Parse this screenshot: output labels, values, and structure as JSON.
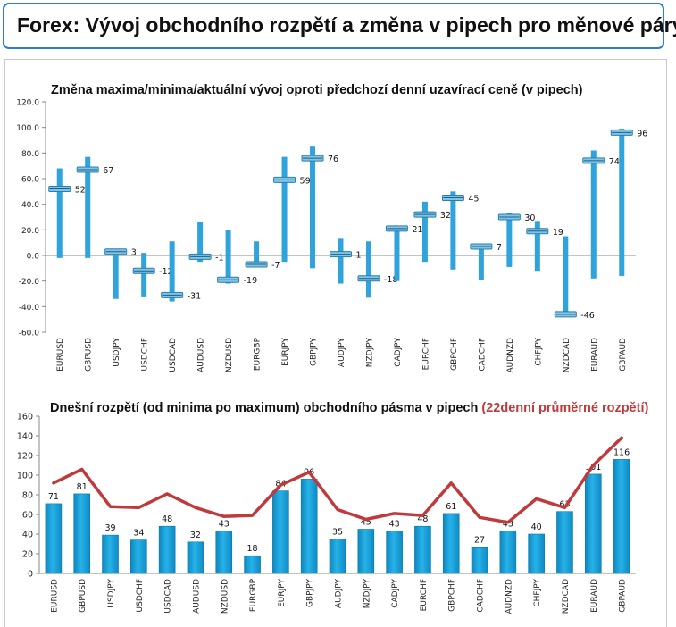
{
  "header": {
    "title": "Forex: Vývoj obchodního rozpětí a změna v pipech pro měnové páry"
  },
  "chart_data": [
    {
      "type": "range-bar",
      "title": "Změna maxima/minima/aktuální vývoj oproti předchozí denní uzavírací ceně (v pipech)",
      "categories": [
        "EURUSD",
        "GBPUSD",
        "USDJPY",
        "USDCHF",
        "USDCAD",
        "AUDUSD",
        "NZDUSD",
        "EURGBP",
        "EURJPY",
        "GBPJPY",
        "AUDJPY",
        "NZDJPY",
        "CADJPY",
        "EURCHF",
        "GBPCHF",
        "CADCHF",
        "AUDNZD",
        "CHFJPY",
        "NZDCAD",
        "EURAUD",
        "GBPAUD"
      ],
      "high": [
        68,
        77,
        3,
        2,
        11,
        26,
        20,
        11,
        77,
        85,
        13,
        11,
        22,
        42,
        50,
        9,
        33,
        27,
        15,
        82,
        99
      ],
      "low": [
        -2,
        -2,
        -34,
        -32,
        -36,
        -5,
        -22,
        -7,
        -5,
        -10,
        -22,
        -33,
        -20,
        -5,
        -11,
        -19,
        -9,
        -12,
        -46,
        -18,
        -16
      ],
      "current": [
        52,
        67,
        3,
        -12,
        -31,
        -1,
        -19,
        -7,
        59,
        76,
        1,
        -18,
        21,
        32,
        45,
        7,
        30,
        19,
        -46,
        74,
        96
      ],
      "current_labels": [
        "52",
        "67",
        "3",
        "-12",
        "-31",
        "-1",
        "-19",
        "-7",
        "59",
        "76",
        "1",
        "-18",
        "21",
        "32",
        "45",
        "7",
        "30",
        "19",
        "-46",
        "74",
        "96"
      ],
      "ylim": [
        -60,
        120
      ],
      "yticks": [
        "120.0",
        "100.0",
        "80.0",
        "60.0",
        "40.0",
        "20.0",
        "0.0",
        "-20.0",
        "-40.0",
        "-60.0"
      ],
      "grid": false,
      "colors": {
        "bar": "#2fa3dc",
        "marker": "#7fc4e6"
      }
    },
    {
      "type": "bar+line",
      "title": "Dnešní rozpětí (od minima po maximum) obchodního pásma v pipech",
      "title_highlight": "(22denní průměrné rozpětí)",
      "categories": [
        "EURUSD",
        "GBPUSD",
        "USDJPY",
        "USDCHF",
        "USDCAD",
        "AUDUSD",
        "NZDUSD",
        "EURGBP",
        "EURJPY",
        "GBPJPY",
        "AUDJPY",
        "NZDJPY",
        "CADJPY",
        "EURCHF",
        "GBPCHF",
        "CADCHF",
        "AUDNZD",
        "CHFJPY",
        "NZDCAD",
        "EURAUD",
        "GBPAUD"
      ],
      "values": [
        71,
        81,
        39,
        34,
        48,
        32,
        43,
        18,
        84,
        96,
        35,
        45,
        43,
        48,
        61,
        27,
        43,
        40,
        63,
        101,
        116
      ],
      "value_labels": [
        "71",
        "81",
        "39",
        "34",
        "48",
        "32",
        "43",
        "18",
        "84",
        "96",
        "35",
        "45",
        "43",
        "48",
        "61",
        "27",
        "43",
        "40",
        "63",
        "101",
        "116"
      ],
      "line": [
        92,
        106,
        68,
        67,
        81,
        67,
        58,
        59,
        90,
        103,
        65,
        55,
        61,
        59,
        92,
        57,
        52,
        76,
        67,
        110,
        138
      ],
      "ylim": [
        0,
        160
      ],
      "yticks": [
        "160",
        "140",
        "120",
        "100",
        "80",
        "60",
        "40",
        "20",
        "0"
      ],
      "grid": false,
      "colors": {
        "bar": "#1aa1d8",
        "line": "#c0393b"
      }
    }
  ]
}
